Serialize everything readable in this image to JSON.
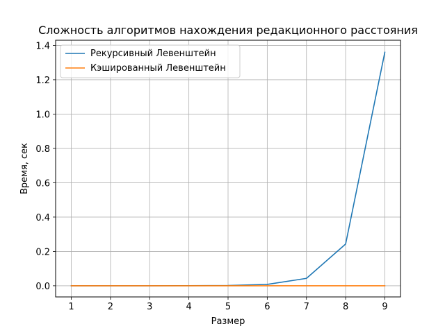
{
  "chart_data": {
    "type": "line",
    "title": "Сложность алгоритмов нахождения редакционного расстояния",
    "xlabel": "Размер",
    "ylabel": "Время, сек",
    "x": [
      1,
      2,
      3,
      4,
      5,
      6,
      7,
      8,
      9
    ],
    "xticks": [
      "1",
      "2",
      "3",
      "4",
      "5",
      "6",
      "7",
      "8",
      "9"
    ],
    "yticks": [
      "0.0",
      "0.2",
      "0.4",
      "0.6",
      "0.8",
      "1.0",
      "1.2",
      "1.4"
    ],
    "ylim": [
      -0.065,
      1.43
    ],
    "xlim": [
      0.6,
      9.4
    ],
    "grid": true,
    "legend": "top-left",
    "series": [
      {
        "name": "Рекурсивный Левенштейн",
        "color": "#1f77b4",
        "values": [
          0.0,
          0.0,
          0.0,
          0.0005,
          0.0015,
          0.008,
          0.043,
          0.243,
          1.36
        ]
      },
      {
        "name": "Кэшированный Левенштейн",
        "color": "#ff7f0e",
        "values": [
          0.0,
          0.0,
          0.0,
          0.0,
          0.0,
          0.0,
          0.0,
          0.0,
          0.0
        ]
      }
    ]
  }
}
